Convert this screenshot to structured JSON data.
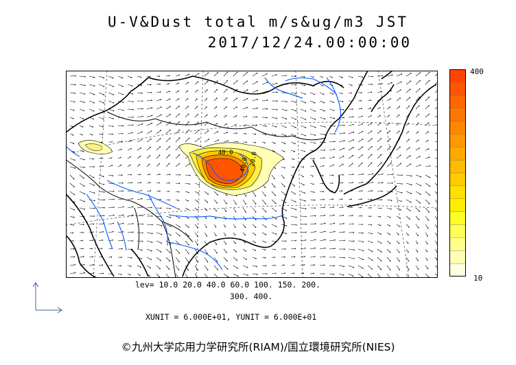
{
  "title": "U-V&Dust total m/s&ug/m3 JST",
  "datetime": "2017/12/24.00:00:00",
  "colorbar": {
    "max_label": "400",
    "min_label": "10",
    "colors": [
      "#ffffe0",
      "#ffffb4",
      "#ffff8a",
      "#ffff5c",
      "#ffff28",
      "#ffee00",
      "#ffe000",
      "#ffcc00",
      "#ffbb00",
      "#ffaa00",
      "#ff9900",
      "#ff8800",
      "#ff7700",
      "#ff6600",
      "#ff5500",
      "#ff4400"
    ]
  },
  "levels_text": "lev= 10.0 20.0 40.0 60.0 100. 150. 200.",
  "levels_text2": "300. 400.",
  "units_text": "XUNIT = 6.000E+01, YUNIT = 6.000E+01",
  "credit": "©九州大学応用力学研究所(RIAM)/国立環境研究所(NIES)",
  "map_colors": {
    "coast": "#000000",
    "rivers": "#1560ff",
    "wind": "#000000",
    "grid": "#555555"
  },
  "dust_labels": [
    "40.0",
    "40.0",
    "20.0"
  ]
}
